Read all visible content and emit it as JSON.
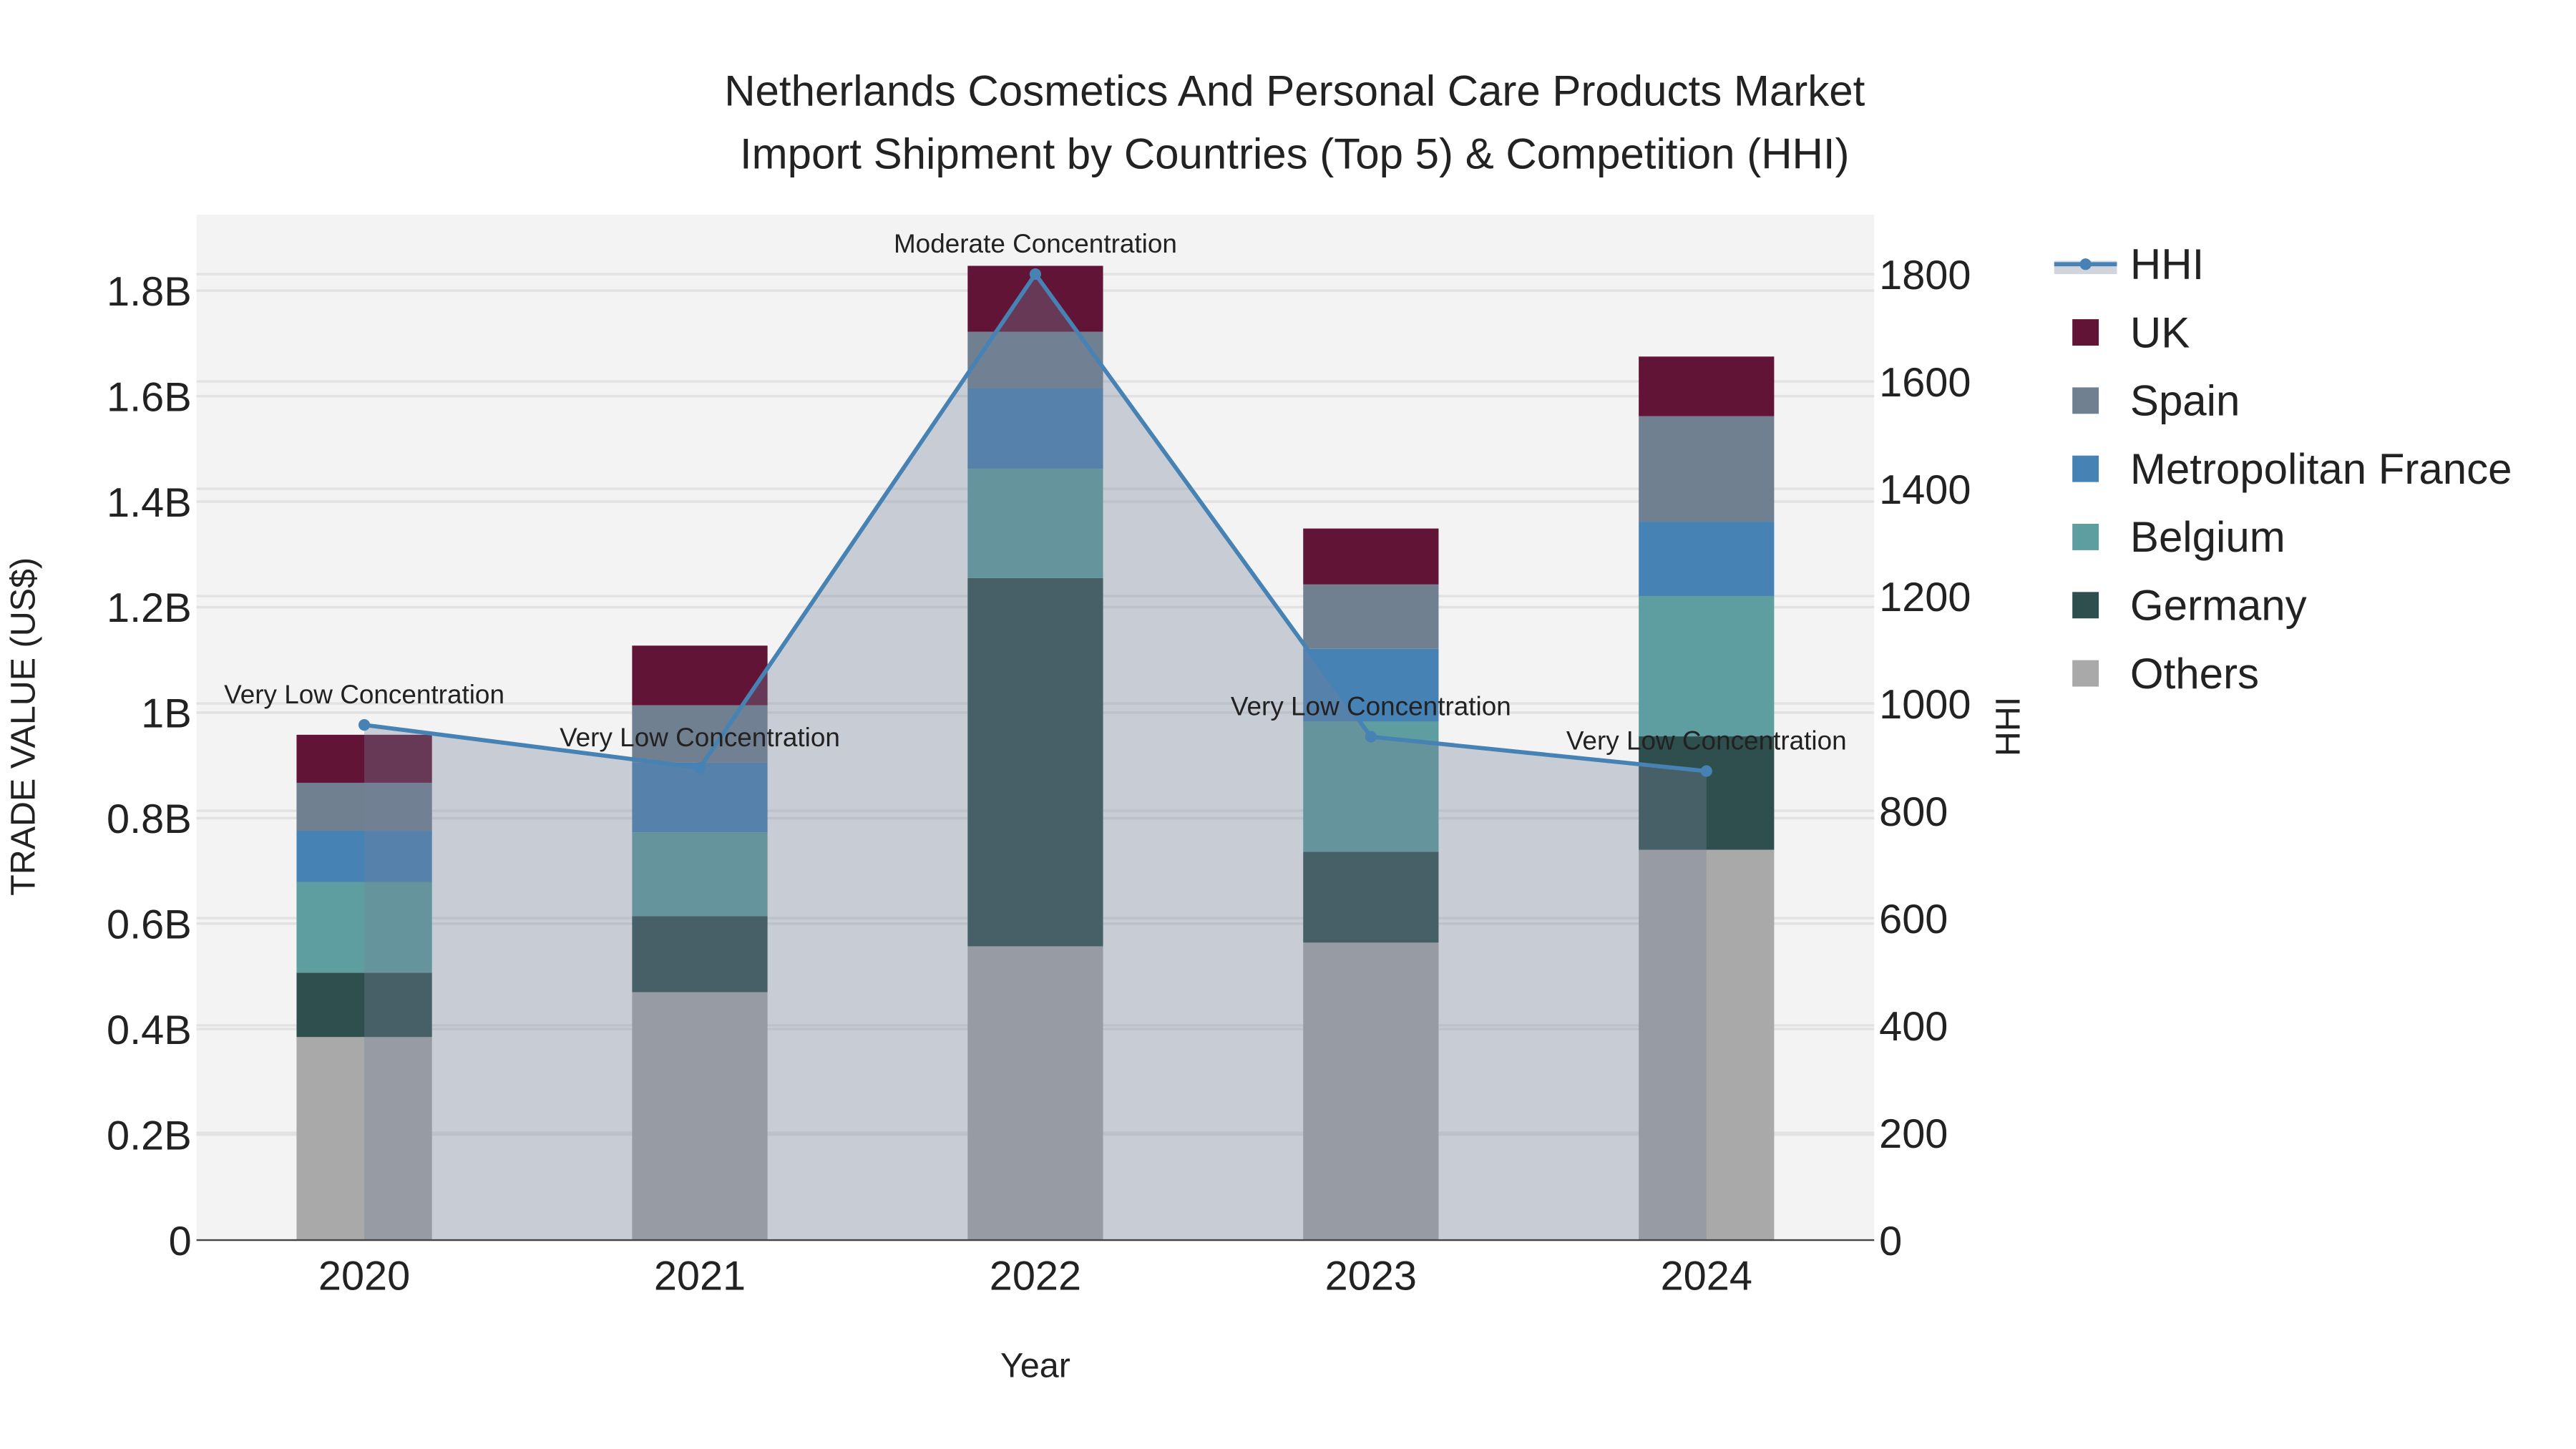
{
  "chart_data": {
    "type": "bar",
    "title_line1": "Netherlands Cosmetics And Personal Care Products Market",
    "title_line2": "Import Shipment by Countries (Top 5) & Competition (HHI)",
    "xlabel": "Year",
    "ylabel": "TRADE VALUE (US$)",
    "y2label": "HHI",
    "categories": [
      "2020",
      "2021",
      "2022",
      "2023",
      "2024"
    ],
    "ylim": [
      0,
      1.9
    ],
    "y2lim": [
      0,
      1900
    ],
    "yticks": [
      {
        "v": 0,
        "label": "0"
      },
      {
        "v": 0.2,
        "label": "0.2B"
      },
      {
        "v": 0.4,
        "label": "0.4B"
      },
      {
        "v": 0.6,
        "label": "0.6B"
      },
      {
        "v": 0.8,
        "label": "0.8B"
      },
      {
        "v": 1.0,
        "label": "1B"
      },
      {
        "v": 1.2,
        "label": "1.2B"
      },
      {
        "v": 1.4,
        "label": "1.4B"
      },
      {
        "v": 1.6,
        "label": "1.6B"
      },
      {
        "v": 1.8,
        "label": "1.8B"
      }
    ],
    "y2ticks": [
      0,
      200,
      400,
      600,
      800,
      1000,
      1200,
      1400,
      1600,
      1800
    ],
    "series": [
      {
        "name": "Others",
        "color": "#A9A9A9",
        "values": [
          0.385,
          0.47,
          0.557,
          0.564,
          0.74
        ]
      },
      {
        "name": "Germany",
        "color": "#2F4F4F",
        "values": [
          0.122,
          0.144,
          0.698,
          0.172,
          0.215
        ]
      },
      {
        "name": "Belgium",
        "color": "#5F9EA0",
        "values": [
          0.172,
          0.159,
          0.207,
          0.247,
          0.266
        ]
      },
      {
        "name": "Metropolitan France",
        "color": "#4682B4",
        "values": [
          0.097,
          0.132,
          0.153,
          0.138,
          0.141
        ]
      },
      {
        "name": "Spain",
        "color": "#708090",
        "values": [
          0.091,
          0.109,
          0.107,
          0.122,
          0.2
        ]
      },
      {
        "name": "UK",
        "color": "#611435",
        "values": [
          0.091,
          0.113,
          0.125,
          0.106,
          0.113
        ]
      }
    ],
    "hhi": {
      "name": "HHI",
      "color": "#4682B4",
      "values": [
        960,
        880,
        1800,
        938,
        874
      ],
      "annotations": [
        "Very Low Concentration",
        "Very Low Concentration",
        "Moderate Concentration",
        "Very Low Concentration",
        "Very Low Concentration"
      ]
    },
    "legend": [
      "HHI",
      "UK",
      "Spain",
      "Metropolitan France",
      "Belgium",
      "Germany",
      "Others"
    ],
    "legend_placement": "right",
    "grid": true
  }
}
